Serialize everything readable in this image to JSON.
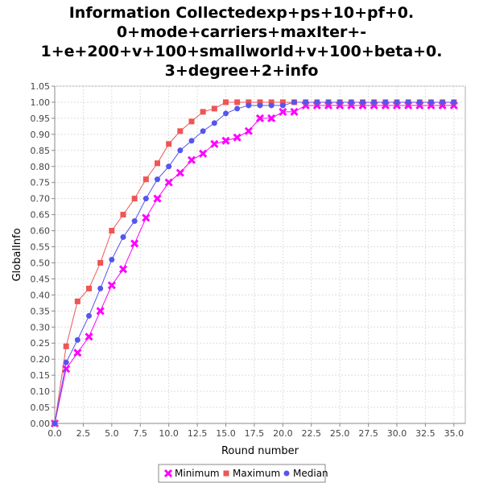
{
  "chart_data": {
    "type": "line",
    "title_lines": [
      "Information Collectedexp+ps+10+pf+0.",
      "0+mode+carriers+maxIter+-",
      "1+e+200+v+100+smallworld+v+100+beta+0.",
      "3+degree+2+info"
    ],
    "xlabel": "Round number",
    "ylabel": "GlobalInfo",
    "xlim": [
      0,
      36
    ],
    "ylim": [
      0,
      1.05
    ],
    "x_ticks": [
      "0.0",
      "2.5",
      "5.0",
      "7.5",
      "10.0",
      "12.5",
      "15.0",
      "17.5",
      "20.0",
      "22.5",
      "25.0",
      "27.5",
      "30.0",
      "32.5",
      "35.0"
    ],
    "y_ticks": [
      "0.00",
      "0.05",
      "0.10",
      "0.15",
      "0.20",
      "0.25",
      "0.30",
      "0.35",
      "0.40",
      "0.45",
      "0.50",
      "0.55",
      "0.60",
      "0.65",
      "0.70",
      "0.75",
      "0.80",
      "0.85",
      "0.90",
      "0.95",
      "1.00",
      "1.05"
    ],
    "grid": true,
    "legend_position": "bottom",
    "x": [
      0,
      1,
      2,
      3,
      4,
      5,
      6,
      7,
      8,
      9,
      10,
      11,
      12,
      13,
      14,
      15,
      16,
      17,
      18,
      19,
      20,
      21,
      22,
      23,
      24,
      25,
      26,
      27,
      28,
      29,
      30,
      31,
      32,
      33,
      34,
      35
    ],
    "series": [
      {
        "name": "Minimum",
        "color": "#ff00ff",
        "marker": "x",
        "values": [
          0.0,
          0.17,
          0.22,
          0.27,
          0.35,
          0.43,
          0.48,
          0.56,
          0.64,
          0.7,
          0.75,
          0.78,
          0.82,
          0.84,
          0.87,
          0.88,
          0.89,
          0.91,
          0.95,
          0.95,
          0.97,
          0.97,
          0.99,
          0.99,
          0.99,
          0.99,
          0.99,
          0.99,
          0.99,
          0.99,
          0.99,
          0.99,
          0.99,
          0.99,
          0.99,
          0.99
        ]
      },
      {
        "name": "Maximum",
        "color": "#ee5555",
        "marker": "square",
        "values": [
          0.0,
          0.24,
          0.38,
          0.42,
          0.5,
          0.6,
          0.65,
          0.7,
          0.76,
          0.81,
          0.87,
          0.91,
          0.94,
          0.97,
          0.98,
          1.0,
          1.0,
          1.0,
          1.0,
          1.0,
          1.0,
          1.0,
          1.0,
          1.0,
          1.0,
          1.0,
          1.0,
          1.0,
          1.0,
          1.0,
          1.0,
          1.0,
          1.0,
          1.0,
          1.0,
          1.0
        ]
      },
      {
        "name": "Median",
        "color": "#5555ee",
        "marker": "circle",
        "values": [
          0.0,
          0.19,
          0.26,
          0.335,
          0.42,
          0.51,
          0.58,
          0.63,
          0.7,
          0.76,
          0.8,
          0.85,
          0.88,
          0.91,
          0.935,
          0.965,
          0.98,
          0.99,
          0.99,
          0.99,
          0.99,
          1.0,
          1.0,
          1.0,
          1.0,
          1.0,
          1.0,
          1.0,
          1.0,
          1.0,
          1.0,
          1.0,
          1.0,
          1.0,
          1.0,
          1.0
        ]
      }
    ]
  }
}
